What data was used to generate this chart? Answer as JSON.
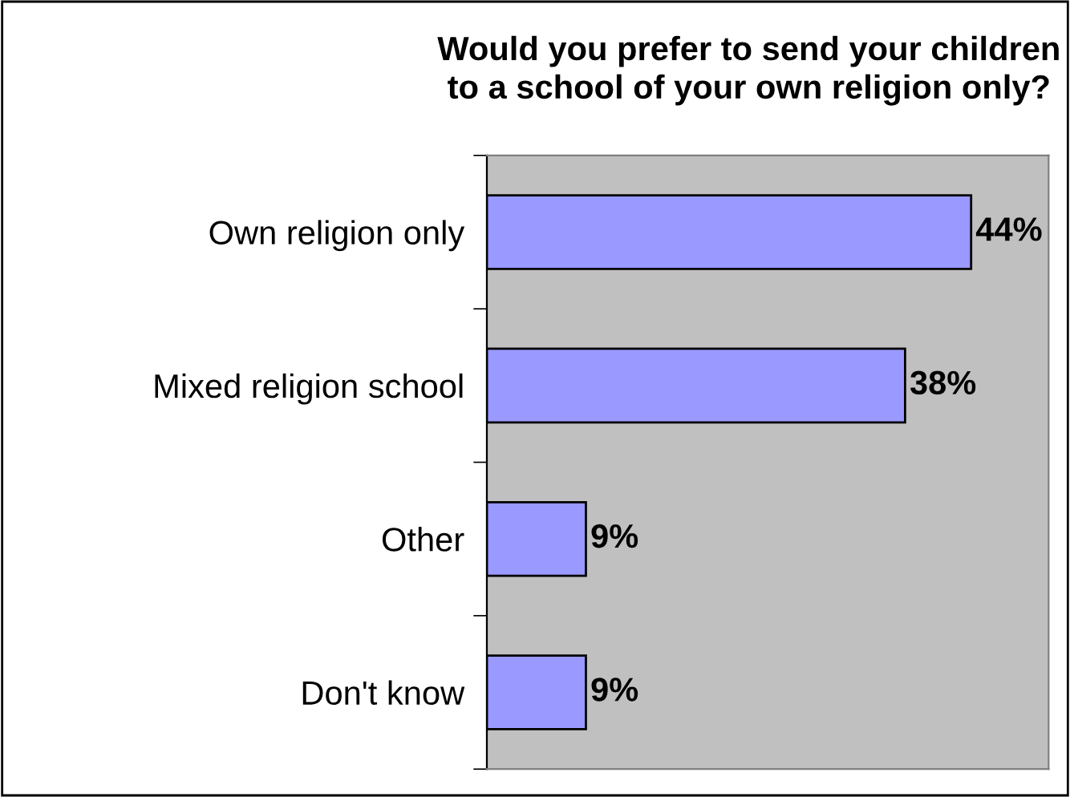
{
  "chart_data": {
    "type": "bar",
    "orientation": "horizontal",
    "title": "Would you prefer to send your children\nto a school of your own religion only?",
    "categories": [
      "Own religion only",
      "Mixed religion school",
      "Other",
      "Don't know"
    ],
    "values": [
      44,
      38,
      9,
      9
    ],
    "value_labels": [
      "44%",
      "38%",
      "9%",
      "9%"
    ],
    "color": "#9999ff",
    "grid": false,
    "legend": false
  }
}
